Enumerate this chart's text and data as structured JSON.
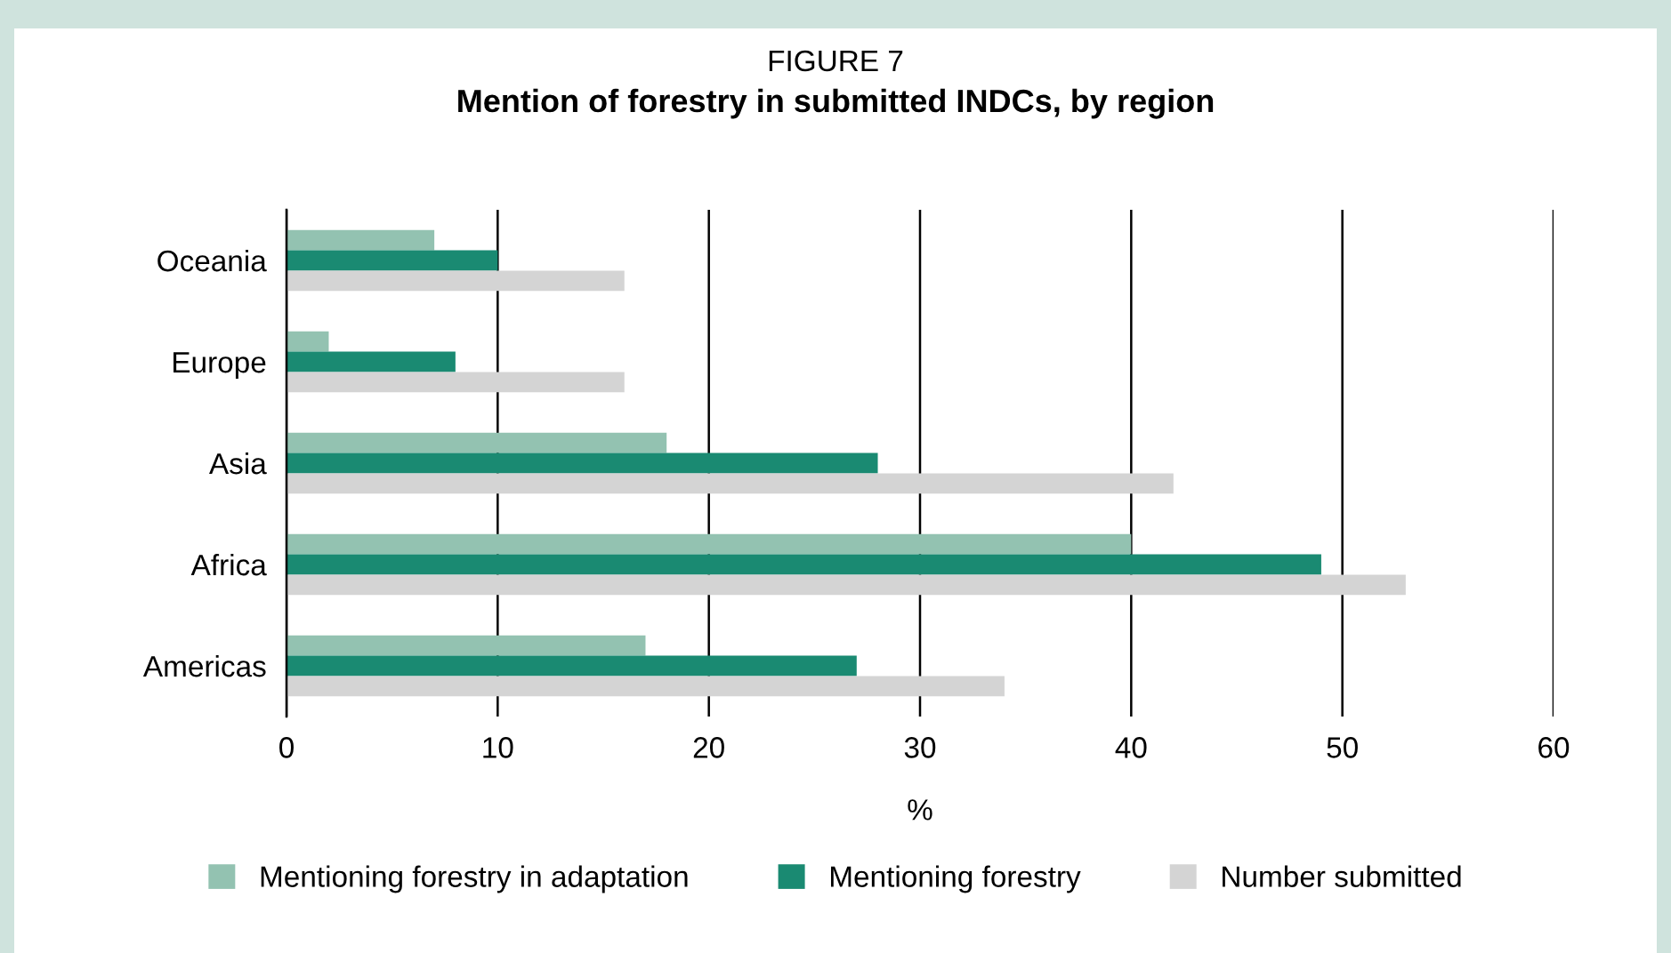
{
  "chart_data": {
    "type": "bar",
    "orientation": "horizontal",
    "title": "FIGURE 7",
    "subtitle": "Mention of forestry in submitted INDCs, by region",
    "xlabel": "%",
    "categories": [
      "Oceania",
      "Europe",
      "Asia",
      "Africa",
      "Americas"
    ],
    "series": [
      {
        "name": "Mentioning forestry in adaptation",
        "color": "#93c2b1",
        "values": [
          7,
          2,
          18,
          40,
          17
        ]
      },
      {
        "name": "Mentioning forestry",
        "color": "#1a8a72",
        "values": [
          10,
          8,
          28,
          49,
          27
        ]
      },
      {
        "name": "Number submitted",
        "color": "#d4d4d4",
        "values": [
          16,
          16,
          42,
          53,
          34
        ]
      }
    ],
    "xlim": [
      0,
      60
    ],
    "xticks": [
      0,
      10,
      20,
      30,
      40,
      50,
      60
    ],
    "grid": "x",
    "legend": "bottom"
  }
}
